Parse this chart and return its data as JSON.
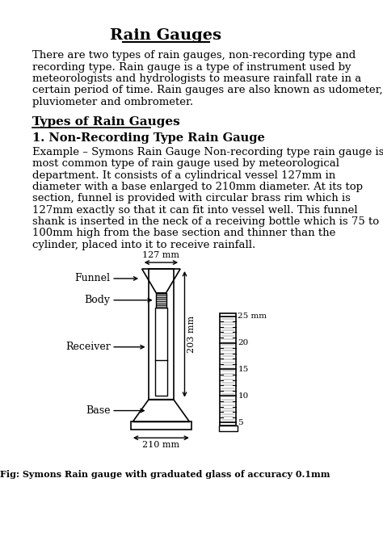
{
  "title": "Rain Gauges",
  "bg_color": "#ffffff",
  "text_color": "#000000",
  "intro_lines": [
    "There are two types of rain gauges, non-recording type and",
    "recording type. Rain gauge is a type of instrument used by",
    "meteorologists and hydrologists to measure rainfall rate in a",
    "certain period of time. Rain gauges are also known as udometer,",
    "pluviometer and ombrometer."
  ],
  "section_heading": "Types of Rain Gauges",
  "subsection_heading": "1. Non-Recording Type Rain Gauge",
  "body_lines": [
    "Example – Symons Rain Gauge Non-recording type rain gauge is",
    "most common type of rain gauge used by meteorological",
    "department. It consists of a cylindrical vessel 127mm in",
    "diameter with a base enlarged to 210mm diameter. At its top",
    "section, funnel is provided with circular brass rim which is",
    "127mm exactly so that it can fit into vessel well. This funnel",
    "shank is inserted in the neck of a receiving bottle which is 75 to",
    "100mm high from the base section and thinner than the",
    "cylinder, placed into it to receive rainfall."
  ],
  "fig_caption": "Fig: Symons Rain gauge with graduated glass of accuracy 0.1mm",
  "dim_127": "127 mm",
  "dim_210": "210 mm",
  "dim_203": "203 mm",
  "label_funnel": "Funnel",
  "label_body": "Body",
  "label_receiver": "Receiver",
  "label_base": "Base",
  "scale_values": [
    25,
    20,
    15,
    10,
    5
  ]
}
